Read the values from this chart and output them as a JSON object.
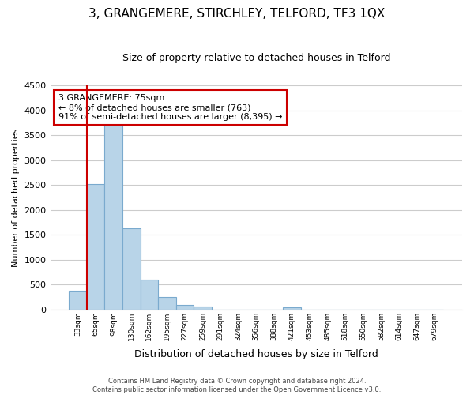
{
  "title": "3, GRANGEMERE, STIRCHLEY, TELFORD, TF3 1QX",
  "subtitle": "Size of property relative to detached houses in Telford",
  "xlabel": "Distribution of detached houses by size in Telford",
  "ylabel": "Number of detached properties",
  "bar_labels": [
    "33sqm",
    "65sqm",
    "98sqm",
    "130sqm",
    "162sqm",
    "195sqm",
    "227sqm",
    "259sqm",
    "291sqm",
    "324sqm",
    "356sqm",
    "388sqm",
    "421sqm",
    "453sqm",
    "485sqm",
    "518sqm",
    "550sqm",
    "582sqm",
    "614sqm",
    "647sqm",
    "679sqm"
  ],
  "bar_values": [
    380,
    2520,
    3700,
    1630,
    600,
    245,
    90,
    55,
    0,
    0,
    0,
    0,
    45,
    0,
    0,
    0,
    0,
    0,
    0,
    0,
    0
  ],
  "bar_color": "#b8d4e8",
  "vline_x": 0.6,
  "vline_color": "#cc0000",
  "ylim": [
    0,
    4500
  ],
  "yticks": [
    0,
    500,
    1000,
    1500,
    2000,
    2500,
    3000,
    3500,
    4000,
    4500
  ],
  "annotation_line1": "3 GRANGEMERE: 75sqm",
  "annotation_line2": "← 8% of detached houses are smaller (763)",
  "annotation_line3": "91% of semi-detached houses are larger (8,395) →",
  "footer_line1": "Contains HM Land Registry data © Crown copyright and database right 2024.",
  "footer_line2": "Contains public sector information licensed under the Open Government Licence v3.0.",
  "bg_color": "#ffffff",
  "grid_color": "#cccccc"
}
